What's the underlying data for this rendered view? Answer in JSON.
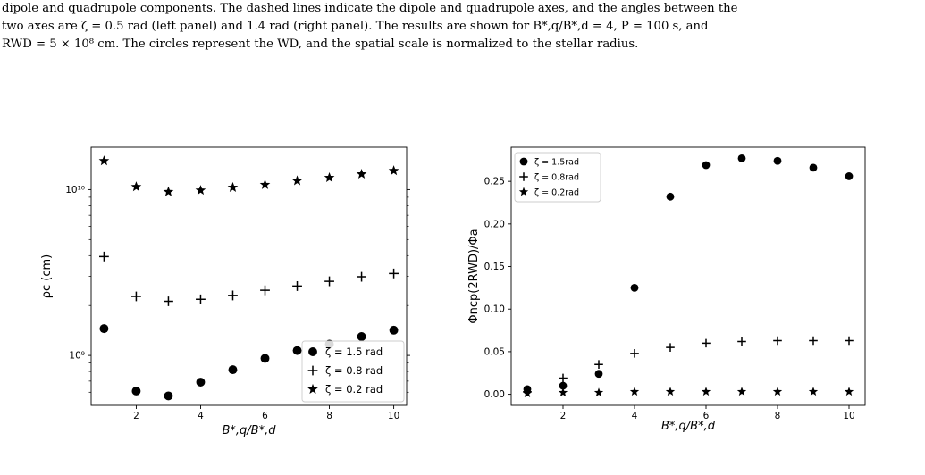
{
  "caption": {
    "lines": [
      "dipole and quadrupole components. The dashed lines indicate the dipole and quadrupole axes, and the angles between the",
      "two axes are ζ = 0.5 rad (left panel) and 1.4 rad (right panel). The results are shown for B*,q/B*,d = 4, P = 100 s, and",
      "RWD = 5 × 10⁸ cm. The circles represent the WD, and the spatial scale is normalized to the stellar radius."
    ]
  },
  "chart_data": [
    {
      "type": "scatter",
      "xlabel": "B*,q/B*,d",
      "ylabel": "ρc (cm)",
      "xlim": [
        0.6,
        10.4
      ],
      "ylim": [
        500000000,
        18000000000
      ],
      "yscale": "log",
      "grid": false,
      "legend_position": "bottom-right",
      "x_ticks": [
        2,
        4,
        6,
        8,
        10
      ],
      "x_tick_labels": [
        "2",
        "4",
        "6",
        "8",
        "10"
      ],
      "y_ticks": [
        1000000000,
        10000000000
      ],
      "y_tick_labels": [
        "10⁹",
        "10¹⁰"
      ],
      "x": [
        1,
        2,
        3,
        4,
        5,
        6,
        7,
        8,
        9,
        10
      ],
      "series": [
        {
          "name": "ζ = 1.5 rad",
          "marker": "circle",
          "values": [
            1450000000,
            610000000,
            570000000,
            690000000,
            820000000,
            960000000,
            1070000000,
            1170000000,
            1300000000,
            1420000000
          ]
        },
        {
          "name": "ζ = 0.8 rad",
          "marker": "plus",
          "values": [
            3950000000,
            2270000000,
            2120000000,
            2180000000,
            2300000000,
            2470000000,
            2620000000,
            2800000000,
            2980000000,
            3120000000
          ]
        },
        {
          "name": "ζ = 0.2 rad",
          "marker": "star",
          "values": [
            14900000000,
            10400000000,
            9700000000,
            9900000000,
            10300000000,
            10700000000,
            11300000000,
            11800000000,
            12400000000,
            13000000000
          ]
        }
      ]
    },
    {
      "type": "scatter",
      "xlabel": "B*,q/B*,d",
      "ylabel": "Φncp(2RWD)/Φa",
      "xlim": [
        0.55,
        10.45
      ],
      "ylim": [
        -0.013,
        0.29
      ],
      "yscale": "linear",
      "grid": false,
      "legend_position": "top-left",
      "x_ticks": [
        2,
        4,
        6,
        8,
        10
      ],
      "x_tick_labels": [
        "2",
        "4",
        "6",
        "8",
        "10"
      ],
      "y_ticks": [
        0.0,
        0.05,
        0.1,
        0.15,
        0.2,
        0.25
      ],
      "y_tick_labels": [
        "0.00",
        "0.05",
        "0.10",
        "0.15",
        "0.20",
        "0.25"
      ],
      "x": [
        1,
        2,
        3,
        4,
        5,
        6,
        7,
        8,
        9,
        10
      ],
      "series": [
        {
          "name": "ζ = 1.5rad",
          "marker": "circle",
          "values": [
            0.006,
            0.01,
            0.024,
            0.125,
            0.232,
            0.269,
            0.277,
            0.274,
            0.266,
            0.256
          ]
        },
        {
          "name": "ζ = 0.8rad",
          "marker": "plus",
          "values": [
            0.003,
            0.019,
            0.035,
            0.048,
            0.055,
            0.06,
            0.062,
            0.063,
            0.063,
            0.063
          ]
        },
        {
          "name": "ζ = 0.2rad",
          "marker": "star",
          "values": [
            0.001,
            0.002,
            0.002,
            0.003,
            0.003,
            0.003,
            0.003,
            0.003,
            0.003,
            0.003
          ]
        }
      ]
    }
  ]
}
